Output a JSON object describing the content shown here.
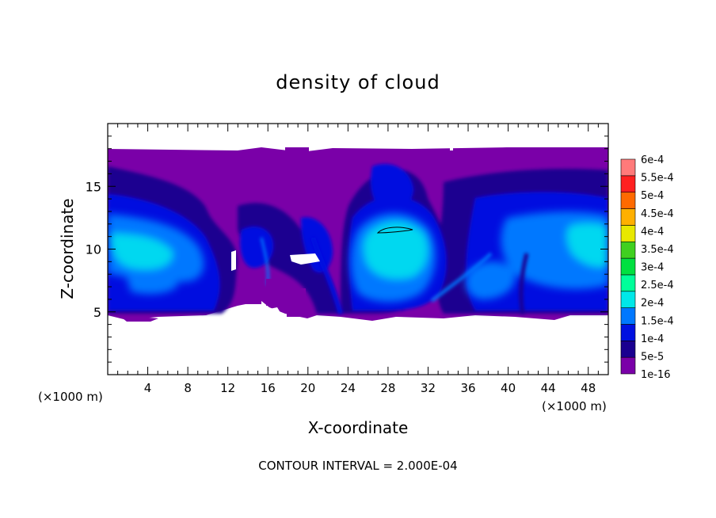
{
  "chart_data": {
    "type": "heatmap",
    "title": "density of cloud",
    "xlabel": "X-coordinate",
    "ylabel": "Z-coordinate",
    "x_unit_left": "(×1000 m)",
    "x_unit_right": "(×1000 m)",
    "footer": "CONTOUR INTERVAL = 2.000E-04",
    "xlim": [
      0,
      50
    ],
    "ylim": [
      0,
      20
    ],
    "x_ticks": [
      4,
      8,
      12,
      16,
      20,
      24,
      28,
      32,
      36,
      40,
      44,
      48
    ],
    "y_ticks": [
      5,
      10,
      15
    ],
    "legend_position": "right",
    "colorbar": {
      "labels": [
        "1e-16",
        "5e-5",
        "1e-4",
        "1.5e-4",
        "2e-4",
        "2.5e-4",
        "3e-4",
        "3.5e-4",
        "4e-4",
        "4.5e-4",
        "5e-4",
        "5.5e-4",
        "6e-4"
      ],
      "colors": [
        "#7a00a8",
        "#1a0090",
        "#0010e0",
        "#0078ff",
        "#00e8e8",
        "#00ff9a",
        "#00e040",
        "#40d020",
        "#e8e800",
        "#ffb000",
        "#ff6a00",
        "#ff2020",
        "#ff7a7a"
      ]
    },
    "cloud_layer_z": [
      5,
      18
    ],
    "contour_level_1_region": {
      "x": [
        27,
        31
      ],
      "z": [
        11.2,
        11.8
      ]
    }
  }
}
